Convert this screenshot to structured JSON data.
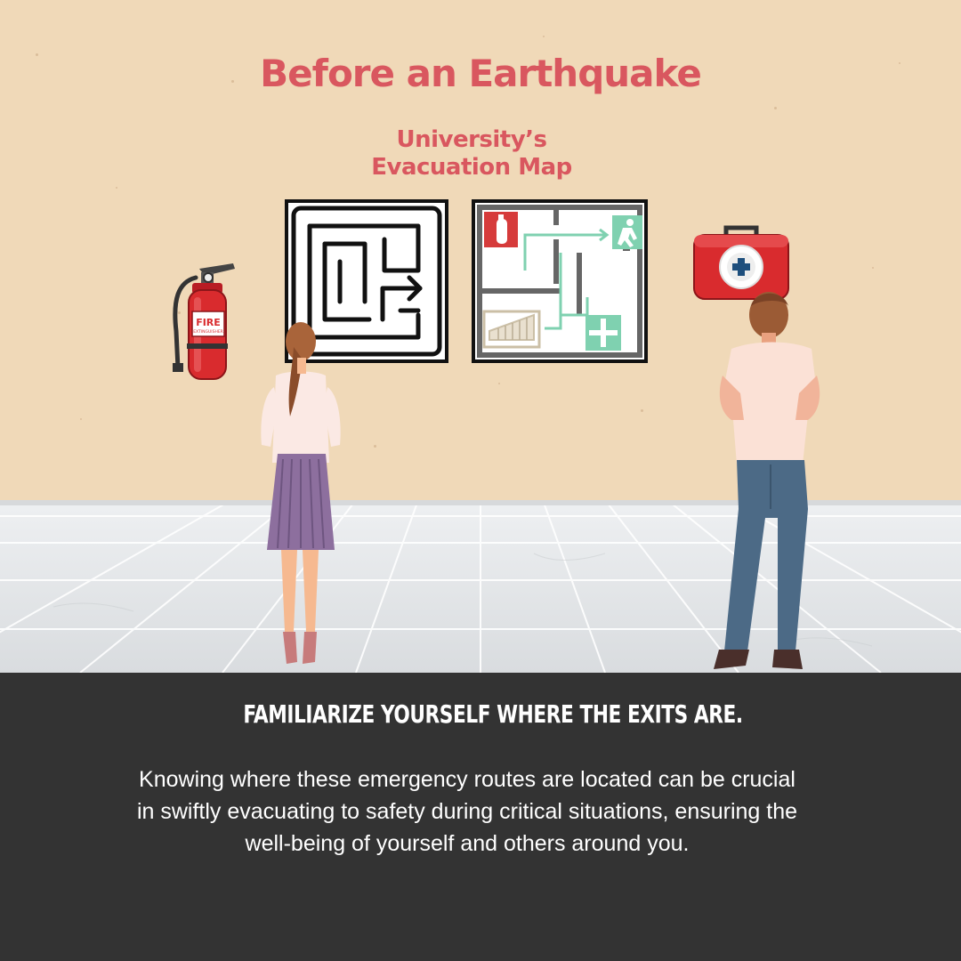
{
  "header": {
    "title": "Before an Earthquake",
    "subtitle_line1": "University’s",
    "subtitle_line2": "Evacuation Map"
  },
  "extinguisher": {
    "label_main": "FIRE",
    "label_sub": "EXTINGUISHER"
  },
  "footer": {
    "headline": "FAMILIARIZE YOURSELF WHERE THE EXITS ARE.",
    "body": "Knowing where these emergency routes are located can be crucial in swiftly evacuating to safety during critical situations, ensuring the well-being of yourself and others around you."
  },
  "colors": {
    "wall": "#f0d9b8",
    "accent_red": "#d9575f",
    "panel": "#333333",
    "route_green": "#7fd1b0"
  }
}
